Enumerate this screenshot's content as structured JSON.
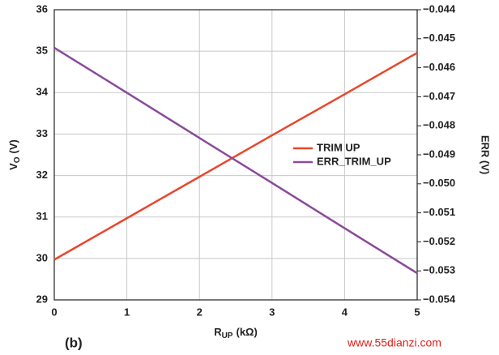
{
  "chart_data": {
    "type": "line",
    "x_label": {
      "main": "R",
      "sub": "UP",
      "unit": "(kΩ)"
    },
    "y_label": {
      "main": "V",
      "sub": "O",
      "unit": "(V)"
    },
    "y2_label": "ERR (V)",
    "panel_label": "(b)",
    "watermark": "www.55dianzi.com",
    "x": [
      0,
      1,
      2,
      3,
      4,
      5
    ],
    "xlim": [
      0,
      5
    ],
    "xticks": [
      0,
      1,
      2,
      3,
      4,
      5
    ],
    "ylim": [
      29,
      36
    ],
    "yticks": [
      29,
      30,
      31,
      32,
      33,
      34,
      35,
      36
    ],
    "y2lim": [
      -0.054,
      -0.044
    ],
    "y2ticks": [
      {
        "value": -0.054,
        "label": "−0.054"
      },
      {
        "value": -0.053,
        "label": "−0.053"
      },
      {
        "value": -0.052,
        "label": "−0.052"
      },
      {
        "value": -0.051,
        "label": "−0.051"
      },
      {
        "value": -0.05,
        "label": "−0.050"
      },
      {
        "value": -0.049,
        "label": "−0.049"
      },
      {
        "value": -0.048,
        "label": "−0.048"
      },
      {
        "value": -0.047,
        "label": "−0.047"
      },
      {
        "value": -0.046,
        "label": "−0.046"
      },
      {
        "value": -0.045,
        "label": "−0.045"
      },
      {
        "value": -0.044,
        "label": "−0.044"
      }
    ],
    "grid": true,
    "series": [
      {
        "name": "TRIM UP",
        "color": "#e8472b",
        "values": [
          29.97,
          30.97,
          31.97,
          32.97,
          33.96,
          34.96
        ]
      },
      {
        "name": "ERR_TRIM_UP",
        "color": "#8a4a9a",
        "axis": "y2",
        "values": [
          -0.04531,
          -0.04686,
          -0.04842,
          -0.04997,
          -0.05153,
          -0.05308
        ]
      }
    ]
  }
}
